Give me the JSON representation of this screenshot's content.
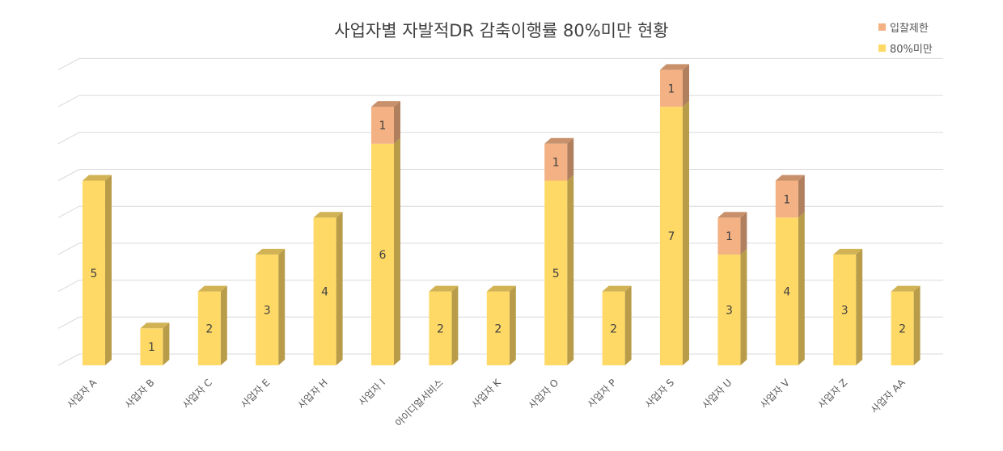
{
  "chart_data": {
    "type": "bar",
    "stacked": true,
    "title": "사업자별 자발적DR 감축이행률 80%미만 현황",
    "xlabel": "",
    "ylabel": "",
    "ylim": [
      0,
      8
    ],
    "grid": true,
    "legend_position": "top-right",
    "categories": [
      "사업자 A",
      "사업자 B",
      "사업자 C",
      "사업자 E",
      "사업자 H",
      "사업자 I",
      "아이디얼서비스",
      "사업자 K",
      "사업자 O",
      "사업자 P",
      "사업자 S",
      "사업자 U",
      "사업자 V",
      "사업자 Z",
      "사업자 AA"
    ],
    "series": [
      {
        "name": "80%미만",
        "color": "#FFD966",
        "values": [
          5,
          1,
          2,
          3,
          4,
          6,
          2,
          2,
          5,
          2,
          7,
          3,
          4,
          3,
          2
        ]
      },
      {
        "name": "입찰제한",
        "color": "#F4B183",
        "values": [
          0,
          0,
          0,
          0,
          0,
          1,
          0,
          0,
          1,
          0,
          1,
          1,
          1,
          0,
          0
        ]
      }
    ],
    "legend_order": [
      "입찰제한",
      "80%미만"
    ]
  }
}
